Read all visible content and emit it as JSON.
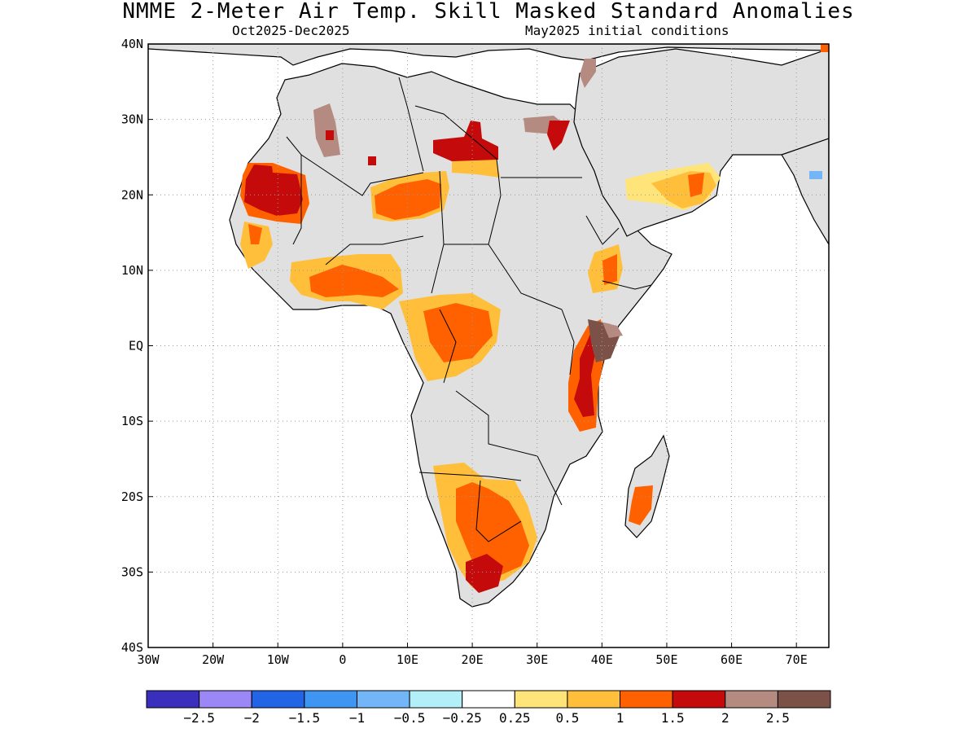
{
  "title": "NMME 2-Meter Air Temp. Skill Masked Standard Anomalies",
  "valid_period": "Oct2025-Dec2025",
  "initial_conditions": "May2025 initial conditions",
  "axes": {
    "lon_range": [
      -30,
      75
    ],
    "lat_range": [
      -40,
      40
    ],
    "x_ticks": [
      {
        "value": -30,
        "label": "30W"
      },
      {
        "value": -20,
        "label": "20W"
      },
      {
        "value": -10,
        "label": "10W"
      },
      {
        "value": 0,
        "label": "0"
      },
      {
        "value": 10,
        "label": "10E"
      },
      {
        "value": 20,
        "label": "20E"
      },
      {
        "value": 30,
        "label": "30E"
      },
      {
        "value": 40,
        "label": "40E"
      },
      {
        "value": 50,
        "label": "50E"
      },
      {
        "value": 60,
        "label": "60E"
      },
      {
        "value": 70,
        "label": "70E"
      }
    ],
    "y_ticks": [
      {
        "value": 40,
        "label": "40N"
      },
      {
        "value": 30,
        "label": "30N"
      },
      {
        "value": 20,
        "label": "20N"
      },
      {
        "value": 10,
        "label": "10N"
      },
      {
        "value": 0,
        "label": "EQ"
      },
      {
        "value": -10,
        "label": "10S"
      },
      {
        "value": -20,
        "label": "20S"
      },
      {
        "value": -30,
        "label": "30S"
      },
      {
        "value": -40,
        "label": "40S"
      }
    ]
  },
  "colorbar": {
    "colors": [
      "#3a2fbd",
      "#9b87f5",
      "#2164e6",
      "#3f95f2",
      "#72b6f8",
      "#b2eff8",
      "#ffffff",
      "#ffe47a",
      "#ffbf3a",
      "#ff6100",
      "#c40a0a",
      "#b58a80",
      "#7c5248"
    ],
    "labels": [
      "-2.5",
      "-2",
      "-1.5",
      "-1",
      "-0.5",
      "-0.25",
      "0.25",
      "0.5",
      "1",
      "1.5",
      "2",
      "2.5"
    ]
  },
  "colors": {
    "land_masked": "#e0e0e0",
    "ocean": "#ffffff",
    "coastline": "#000000"
  },
  "anomaly_regions": [
    {
      "name": "western-sahara-mauritania",
      "lon": [
        -17,
        -5
      ],
      "lat": [
        14,
        24
      ],
      "level": "1.5-2",
      "color": "#c40a0a"
    },
    {
      "name": "northern-niger-chad",
      "lon": [
        4,
        16
      ],
      "lat": [
        15,
        22
      ],
      "level": "1-1.5",
      "color": "#ff6100"
    },
    {
      "name": "southern-libya",
      "lon": [
        14,
        23
      ],
      "lat": [
        23,
        29
      ],
      "level": "1.5-2",
      "color": "#c40a0a"
    },
    {
      "name": "central-algeria",
      "lon": [
        -5,
        0
      ],
      "lat": [
        24,
        33
      ],
      "level": "2-2.5",
      "color": "#b58a80"
    },
    {
      "name": "northeast-egypt",
      "lon": [
        28,
        33
      ],
      "lat": [
        26,
        31
      ],
      "level": "2-2.5",
      "color": "#b58a80"
    },
    {
      "name": "southern-arabia",
      "lon": [
        43,
        58
      ],
      "lat": [
        17,
        24
      ],
      "level": "0.5-1.5",
      "color": "#ffbf3a"
    },
    {
      "name": "west-africa-coast",
      "lon": [
        -8,
        10
      ],
      "lat": [
        6,
        11
      ],
      "level": "0.5-1.5",
      "color": "#ff6100"
    },
    {
      "name": "central-africa",
      "lon": [
        12,
        24
      ],
      "lat": [
        -5,
        6
      ],
      "level": "0.5-1.5",
      "color": "#ffbf3a"
    },
    {
      "name": "east-africa-coast",
      "lon": [
        35,
        42
      ],
      "lat": [
        -12,
        4
      ],
      "level": "1.5-2.5",
      "color": "#c40a0a"
    },
    {
      "name": "ethiopia-somalia",
      "lon": [
        38,
        43
      ],
      "lat": [
        8,
        14
      ],
      "level": "0.5-1.5",
      "color": "#ff6100"
    },
    {
      "name": "southern-africa",
      "lon": [
        14,
        30
      ],
      "lat": [
        -34,
        -18
      ],
      "level": "0.5-2",
      "color": "#ff6100"
    },
    {
      "name": "madagascar",
      "lon": [
        44,
        48
      ],
      "lat": [
        -25,
        -19
      ],
      "level": "1-1.5",
      "color": "#ff6100"
    }
  ]
}
